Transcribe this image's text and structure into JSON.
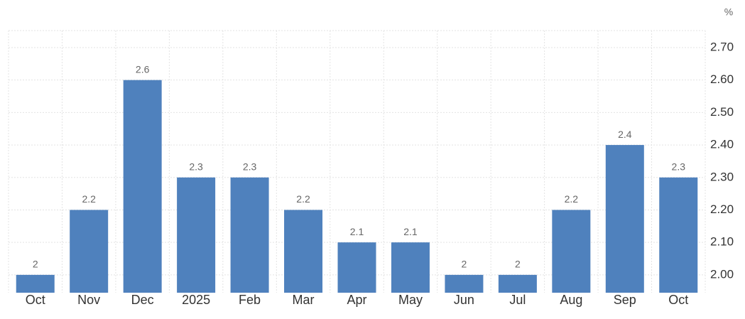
{
  "chart_data": {
    "type": "bar",
    "unit": "%",
    "categories": [
      "Oct",
      "Nov",
      "Dec",
      "2025",
      "Feb",
      "Mar",
      "Apr",
      "May",
      "Jun",
      "Jul",
      "Aug",
      "Sep",
      "Oct"
    ],
    "values": [
      2,
      2.2,
      2.6,
      2.3,
      2.3,
      2.2,
      2.1,
      2.1,
      2,
      2,
      2.2,
      2.4,
      2.3
    ],
    "color": "#4f81bd",
    "ylim": [
      1.945,
      2.7525
    ],
    "yticks": [
      {
        "value": 2,
        "label": "2.00"
      },
      {
        "value": 2.1,
        "label": "2.10"
      },
      {
        "value": 2.2,
        "label": "2.20"
      },
      {
        "value": 2.3,
        "label": "2.30"
      },
      {
        "value": 2.4,
        "label": "2.40"
      },
      {
        "value": 2.5,
        "label": "2.50"
      },
      {
        "value": 2.6,
        "label": "2.60"
      },
      {
        "value": 2.7,
        "label": "2.70"
      }
    ],
    "grid": true
  }
}
